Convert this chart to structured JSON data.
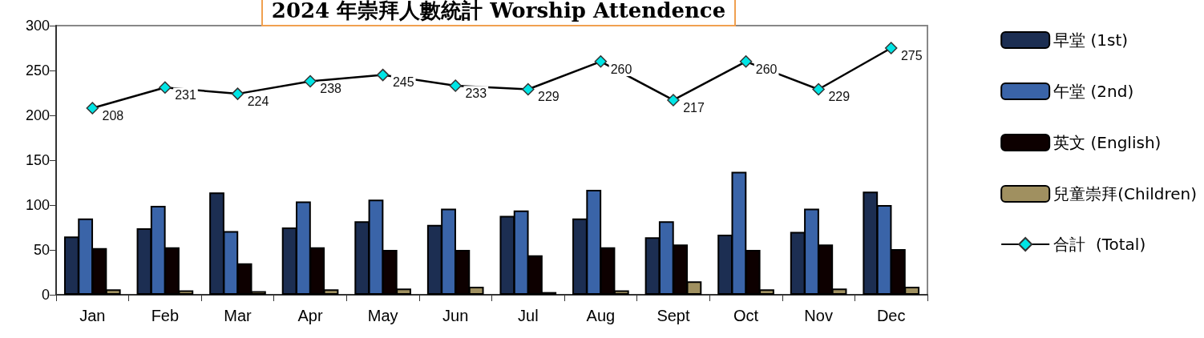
{
  "chart_data": {
    "type": "bar",
    "title": "2024 年崇拜人數統計 Worship Attendence",
    "categories": [
      "Jan",
      "Feb",
      "Mar",
      "Apr",
      "May",
      "Jun",
      "Jul",
      "Aug",
      "Sept",
      "Oct",
      "Nov",
      "Dec"
    ],
    "series": [
      {
        "name": "早堂 (1st)",
        "color": "#1c2e52",
        "values": [
          65,
          74,
          114,
          75,
          82,
          78,
          88,
          85,
          64,
          67,
          70,
          115
        ]
      },
      {
        "name": "午堂 (2nd)",
        "color": "#3a64a8",
        "values": [
          85,
          99,
          71,
          104,
          106,
          96,
          94,
          117,
          82,
          137,
          96,
          100
        ]
      },
      {
        "name": "英文 (English)",
        "color": "#0d0000",
        "values": [
          52,
          53,
          35,
          53,
          50,
          50,
          44,
          53,
          56,
          50,
          56,
          51
        ]
      },
      {
        "name": "兒童崇拜(Children)",
        "color": "#a09060",
        "values": [
          6,
          5,
          4,
          6,
          7,
          9,
          3,
          5,
          15,
          6,
          7,
          9
        ]
      },
      {
        "name": "合計  (Total)",
        "type": "line",
        "color": "#00e5e5",
        "marker": "diamond",
        "values": [
          208,
          231,
          224,
          238,
          245,
          233,
          229,
          260,
          217,
          260,
          229,
          275
        ],
        "value_labels": [
          "208",
          "231",
          "224",
          "238",
          "245",
          "233",
          "229",
          "260",
          "217",
          "260",
          "229",
          "275"
        ]
      }
    ],
    "ylim": [
      0,
      300
    ],
    "yticks": [
      0,
      50,
      100,
      150,
      200,
      250,
      300
    ],
    "grid": false,
    "legend": "right"
  }
}
